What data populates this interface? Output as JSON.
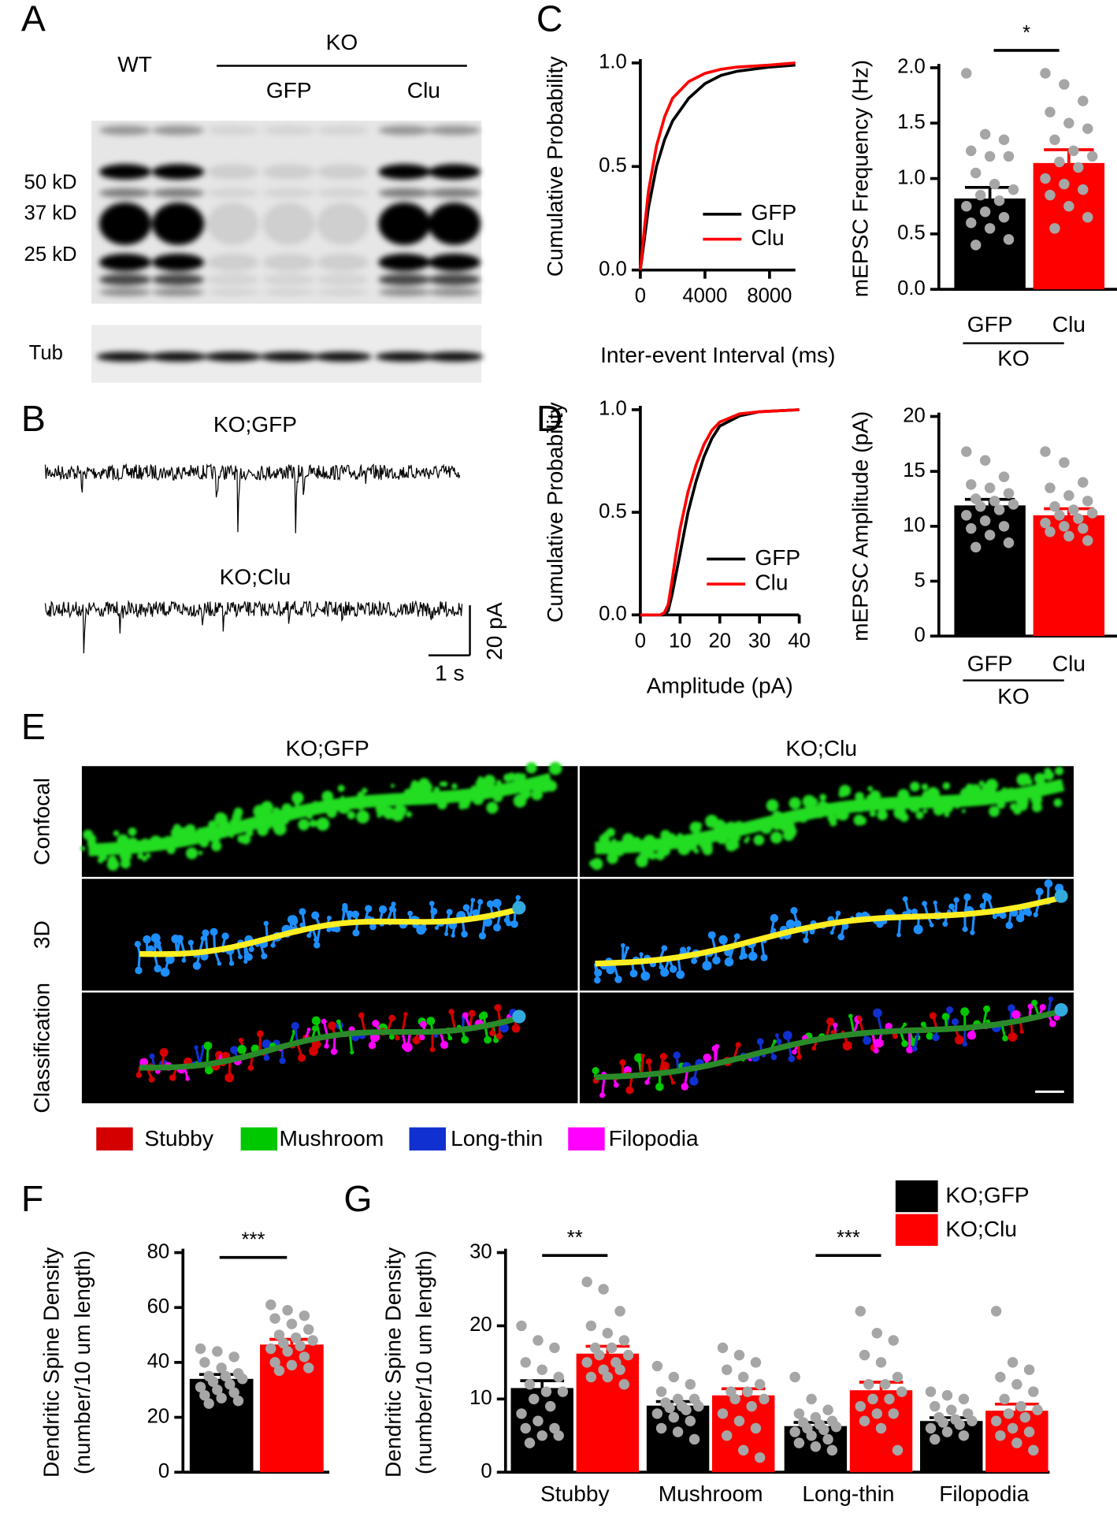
{
  "panels": [
    "A",
    "B",
    "C",
    "D",
    "E",
    "F",
    "G"
  ],
  "blot": {
    "wt": "WT",
    "ko": "KO",
    "gfp": "GFP",
    "clu": "Clu",
    "markers": [
      "50 kD",
      "37 kD",
      "25 kD"
    ],
    "loading": "Tub"
  },
  "traces": {
    "labels": [
      "KO;GFP",
      "KO;Clu"
    ],
    "scale_y": "20 pA",
    "scale_x": "1 s"
  },
  "images": {
    "columns": [
      "KO;GFP",
      "KO;Clu"
    ],
    "rows": [
      "Confocal",
      "3D",
      "Classification"
    ],
    "legend": [
      {
        "name": "Stubby",
        "color": "#d40000"
      },
      {
        "name": "Mushroom",
        "color": "#00c800"
      },
      {
        "name": "Long-thin",
        "color": "#1030d0"
      },
      {
        "name": "Filopodia",
        "color": "#ff00ff"
      }
    ]
  },
  "chart_data": [
    {
      "type": "line",
      "xlabel": "Inter-event Interval (ms)",
      "ylabel": "Cumulative Probability",
      "x": [
        0,
        250,
        500,
        1000,
        1500,
        2000,
        3000,
        4000,
        5000,
        6000,
        8000,
        9600
      ],
      "xlim": [
        0,
        9600
      ],
      "xticks": [
        0,
        4000,
        8000
      ],
      "ylim": [
        0,
        1
      ],
      "yticks": [
        {
          "value": 0,
          "label": "0.0"
        },
        {
          "value": 0.5,
          "label": "0.5"
        },
        {
          "value": 1,
          "label": "1.0"
        }
      ],
      "legend": "lower right",
      "series": [
        {
          "name": "GFP",
          "color": "#000000",
          "values": [
            0,
            0.15,
            0.3,
            0.5,
            0.63,
            0.72,
            0.83,
            0.9,
            0.94,
            0.96,
            0.98,
            0.99
          ]
        },
        {
          "name": "Clu",
          "color": "#ff0000",
          "values": [
            0,
            0.2,
            0.38,
            0.6,
            0.74,
            0.83,
            0.91,
            0.95,
            0.97,
            0.98,
            0.99,
            1.0
          ]
        }
      ]
    },
    {
      "type": "bar",
      "ylabel": "mEPSC Frequency (Hz)",
      "categories": [
        "GFP",
        "Clu"
      ],
      "colors": [
        "#000000",
        "#ff0000"
      ],
      "values": [
        0.82,
        1.14
      ],
      "errors": [
        0.1,
        0.12
      ],
      "points": [
        [
          1.95,
          1.4,
          1.35,
          1.25,
          1.2,
          1.2,
          1.05,
          0.95,
          0.9,
          0.85,
          0.8,
          0.75,
          0.7,
          0.65,
          0.6,
          0.55,
          0.45,
          0.4
        ],
        [
          1.95,
          1.85,
          1.7,
          1.6,
          1.5,
          1.45,
          1.35,
          1.25,
          1.2,
          1.15,
          1.1,
          1.0,
          0.95,
          0.9,
          0.85,
          0.75,
          0.65,
          0.55
        ]
      ],
      "ylim": [
        0,
        2
      ],
      "yticks": [
        {
          "value": 0,
          "label": "0.0"
        },
        {
          "value": 0.5,
          "label": "0.5"
        },
        {
          "value": 1,
          "label": "1.0"
        },
        {
          "value": 1.5,
          "label": "1.5"
        },
        {
          "value": 2,
          "label": "2.0"
        }
      ],
      "group_label": "KO",
      "annotations": [
        {
          "text": "*"
        }
      ]
    },
    {
      "type": "line",
      "xlabel": "Amplitude (pA)",
      "ylabel": "Cumulative Probability",
      "x": [
        0,
        5,
        6,
        7,
        8,
        9,
        10,
        12,
        14,
        16,
        18,
        20,
        25,
        30,
        40
      ],
      "xlim": [
        0,
        40
      ],
      "xticks": [
        0,
        10,
        20,
        30,
        40
      ],
      "ylim": [
        0,
        1
      ],
      "yticks": [
        {
          "value": 0,
          "label": "0.0"
        },
        {
          "value": 0.5,
          "label": "0.5"
        },
        {
          "value": 1,
          "label": "1.0"
        }
      ],
      "legend": "lower right",
      "series": [
        {
          "name": "GFP",
          "color": "#000000",
          "values": [
            0,
            0,
            0,
            0.02,
            0.1,
            0.2,
            0.3,
            0.5,
            0.65,
            0.77,
            0.86,
            0.92,
            0.97,
            0.99,
            1.0
          ]
        },
        {
          "name": "Clu",
          "color": "#ff0000",
          "values": [
            0,
            0,
            0.01,
            0.05,
            0.17,
            0.3,
            0.42,
            0.6,
            0.73,
            0.83,
            0.9,
            0.94,
            0.98,
            0.99,
            1.0
          ]
        }
      ]
    },
    {
      "type": "bar",
      "ylabel": "mEPSC Amplitude (pA)",
      "categories": [
        "GFP",
        "Clu"
      ],
      "colors": [
        "#000000",
        "#ff0000"
      ],
      "values": [
        11.9,
        11.0
      ],
      "errors": [
        0.55,
        0.6
      ],
      "points": [
        [
          16.8,
          16,
          14.5,
          13.8,
          13.5,
          13,
          12.5,
          12.3,
          12,
          11.8,
          11.5,
          11,
          10.5,
          10,
          9.8,
          9.2,
          8.5,
          8.1
        ],
        [
          16.8,
          15.8,
          14,
          13.5,
          12.8,
          12.3,
          11.8,
          11.5,
          11.2,
          11,
          10.7,
          10.3,
          10,
          9.8,
          9.5,
          9.1,
          8.7
        ]
      ],
      "ylim": [
        0,
        20
      ],
      "yticks": [
        0,
        5,
        10,
        15,
        20
      ],
      "group_label": "KO"
    },
    {
      "type": "bar",
      "ylabel": [
        "Dendritic Spine Density",
        "(number/10 um length)"
      ],
      "colors": [
        "#000000",
        "#ff0000"
      ],
      "values": [
        34,
        46.5
      ],
      "errors": [
        1.6,
        1.9
      ],
      "points": [
        [
          45,
          44,
          42,
          40,
          38,
          36,
          35,
          35,
          34,
          33,
          32,
          31,
          30,
          29,
          28,
          27,
          26,
          25
        ],
        [
          61,
          59,
          57,
          56,
          54,
          52,
          50,
          49,
          48,
          47,
          46,
          45,
          44,
          42,
          40,
          39,
          38,
          37
        ]
      ],
      "ylim": [
        0,
        80
      ],
      "yticks": [
        0,
        20,
        40,
        60,
        80
      ],
      "annotations": [
        {
          "text": "***"
        }
      ]
    },
    {
      "type": "grouped_bar",
      "ylabel": [
        "Dendritic Spine Density",
        "(number/10 um length)"
      ],
      "categories": [
        "Stubby",
        "Mushroom",
        "Long-thin",
        "Filopodia"
      ],
      "series": [
        {
          "name": "KO;GFP",
          "color": "#000000",
          "values": [
            11.5,
            9.1,
            6.3,
            7.0
          ],
          "errors": [
            1.0,
            0.55,
            0.5,
            0.45
          ],
          "points": [
            [
              20,
              18,
              17,
              15,
              14,
              13,
              12,
              11,
              11,
              10,
              9,
              8,
              7,
              6,
              6,
              5,
              5,
              4
            ],
            [
              14.5,
              13,
              12,
              11,
              10,
              10,
              9.5,
              9,
              9,
              8.8,
              8.5,
              8,
              7.5,
              7,
              6,
              5.5,
              4.5
            ],
            [
              13,
              10,
              8.5,
              8,
              7.5,
              7,
              6.8,
              6.5,
              6.2,
              6,
              5.8,
              5.5,
              5,
              4.5,
              4,
              3.5,
              3
            ],
            [
              11,
              10.5,
              10,
              9,
              8.5,
              8,
              7.5,
              7.2,
              7,
              6.8,
              6.5,
              6,
              5.5,
              5,
              4.5
            ]
          ]
        },
        {
          "name": "KO;Clu",
          "color": "#ff0000",
          "values": [
            16.2,
            10.5,
            11.2,
            8.4
          ],
          "errors": [
            1.0,
            0.9,
            1.1,
            0.9
          ],
          "points": [
            [
              26,
              25,
              22,
              20,
              19,
              18,
              17,
              17,
              16,
              16,
              15,
              15,
              14,
              14,
              13,
              13,
              12
            ],
            [
              17,
              16,
              15,
              14,
              13,
              12,
              11,
              11,
              10,
              10,
              9,
              8,
              7,
              6,
              5,
              3,
              2
            ],
            [
              22,
              19,
              18,
              16,
              15,
              13,
              12,
              12,
              11,
              10,
              10,
              9,
              8,
              8,
              7,
              6,
              3
            ],
            [
              22,
              15,
              14,
              13,
              12,
              11,
              10,
              9,
              8.5,
              8,
              7.5,
              7,
              6,
              5.5,
              5,
              4,
              3
            ]
          ]
        }
      ],
      "ylim": [
        0,
        30
      ],
      "yticks": [
        0,
        10,
        20,
        30
      ],
      "legend": "upper right",
      "annotations": [
        {
          "text": "**"
        },
        {
          "text": "***"
        }
      ]
    }
  ]
}
